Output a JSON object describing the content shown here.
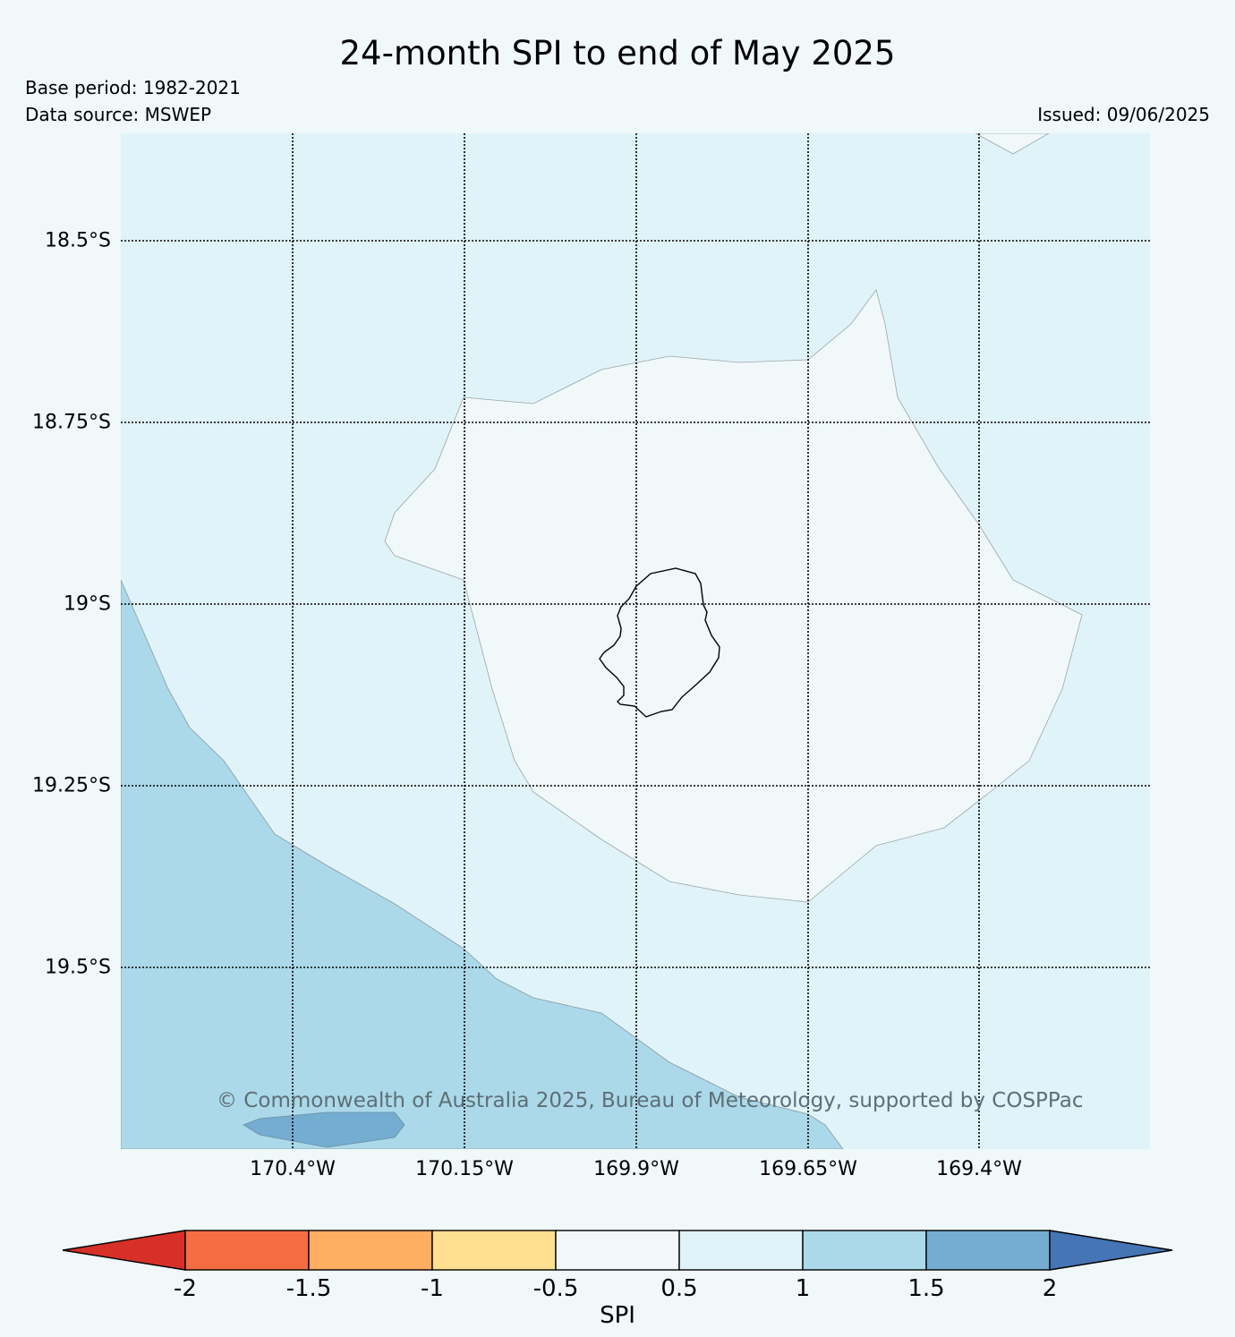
{
  "title": "24-month SPI to end of May 2025",
  "base_period": "Base period: 1982-2021",
  "data_source": "Data source: MSWEP",
  "issued": "Issued: 09/06/2025",
  "copyright": "© Commonwealth of Australia 2025, Bureau of Meteorology, supported by COSPPac",
  "lat_labels": [
    "18.5°S",
    "18.75°S",
    "19°S",
    "19.25°S",
    "19.5°S"
  ],
  "lon_labels": [
    "170.4°W",
    "170.15°W",
    "169.9°W",
    "169.65°W",
    "169.4°W"
  ],
  "colorbar": {
    "title": "SPI",
    "ticks": [
      "-2",
      "-1.5",
      "-1",
      "-0.5",
      "0.5",
      "1",
      "1.5",
      "2"
    ],
    "colors": {
      "below_-2": "#d73027",
      "-2_to_-1.5": "#f46d43",
      "-1.5_to_-1": "#fdae61",
      "-1_to_-0.5": "#fee090",
      "-0.5_to_0.5": "#f0f8fa",
      "0.5_to_1": "#e0f3f8",
      "1_to_1.5": "#abd9e9",
      "1.5_to_2": "#74add1",
      "above_2": "#4575b4"
    }
  },
  "map": {
    "region": "Niue",
    "features": [
      "island-outline",
      "spi-contours"
    ]
  }
}
